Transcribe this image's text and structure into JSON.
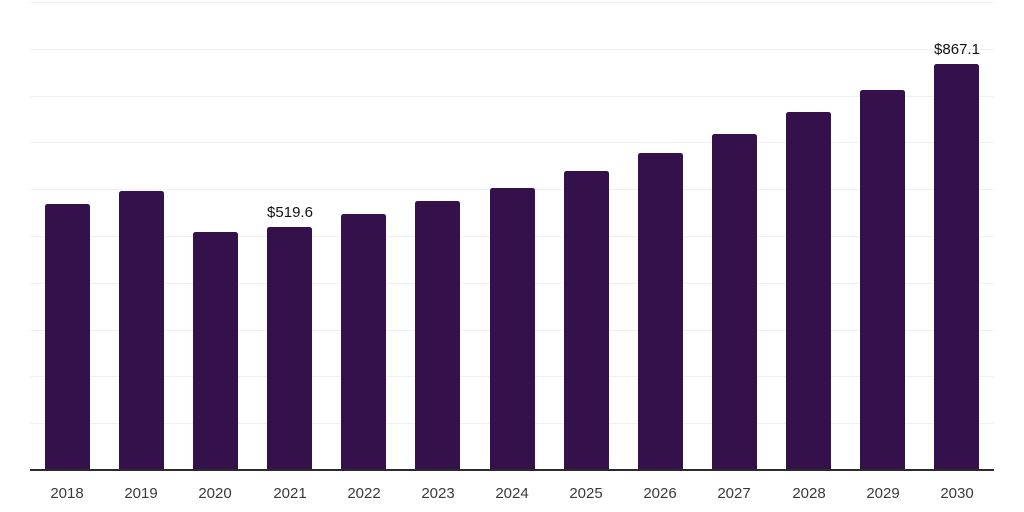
{
  "chart": {
    "colors": {
      "bar": "#35114B",
      "gridline": "#f0f0f0",
      "axis_line": "#2b2b2b",
      "tick_label": "#3a3a3a",
      "data_label": "#111111"
    }
  },
  "chart_data": {
    "type": "bar",
    "title": "",
    "xlabel": "",
    "ylabel": "",
    "categories": [
      "2018",
      "2019",
      "2020",
      "2021",
      "2022",
      "2023",
      "2024",
      "2025",
      "2026",
      "2027",
      "2028",
      "2029",
      "2030"
    ],
    "values": [
      568,
      596,
      509,
      519.6,
      548,
      574,
      603,
      638,
      677,
      717,
      764,
      813,
      867.1
    ],
    "data_labels": [
      null,
      null,
      null,
      "$519.6",
      null,
      null,
      null,
      null,
      null,
      null,
      null,
      null,
      "$867.1"
    ],
    "ylim": [
      0,
      1000
    ],
    "grid": "horizontal",
    "grid_interval": 100,
    "legend": "none",
    "bar_color": "#35114B"
  }
}
